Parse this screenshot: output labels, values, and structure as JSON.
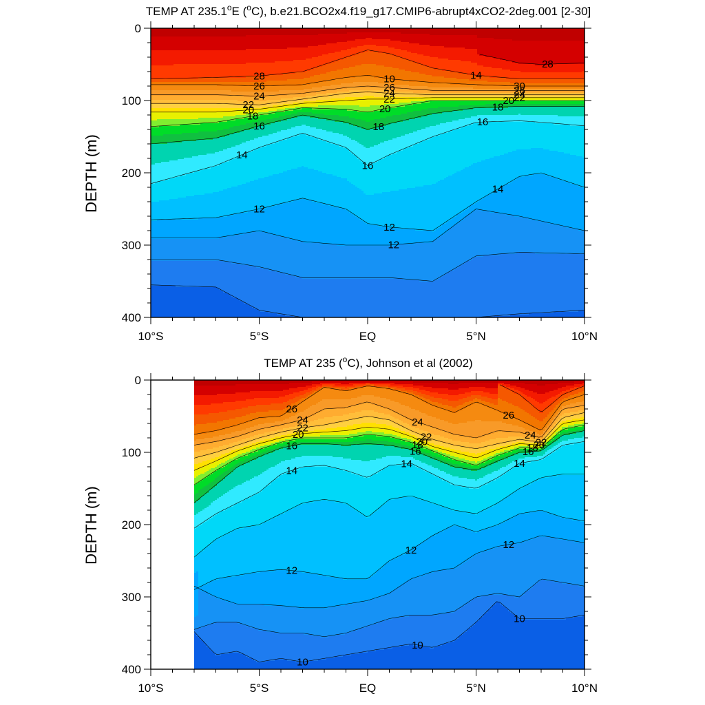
{
  "chart_data": [
    {
      "type": "contour",
      "title_main": "TEMP AT 235.1",
      "title_sup": "o",
      "title_rest": "E (",
      "title_sup2": "o",
      "title_end": "C), b.e21.BCO2x4.f19_g17.CMIP6-abrupt4xCO2-2deg.001 [2-30]",
      "ylabel": "DEPTH (m)",
      "x_ticks": [
        "10°S",
        "5°S",
        "EQ",
        "5°N",
        "10°N"
      ],
      "y_ticks": [
        "0",
        "100",
        "200",
        "300",
        "400"
      ],
      "xlim": [
        -10,
        10
      ],
      "ylim": [
        0,
        400
      ],
      "y_reversed": true,
      "data_xlim": [
        -10,
        10
      ],
      "levels": [
        10,
        12,
        14,
        16,
        18,
        20,
        22,
        24,
        26,
        28,
        30
      ],
      "isotherm_depths": {
        "x": [
          -10,
          -7,
          -5,
          -3,
          -1,
          0,
          1,
          3,
          5,
          7,
          8,
          10
        ],
        "t30": [
          null,
          null,
          null,
          null,
          null,
          null,
          null,
          null,
          35,
          48,
          50,
          48
        ],
        "t28": [
          70,
          68,
          66,
          60,
          40,
          30,
          35,
          55,
          65,
          70,
          70,
          70
        ],
        "t26": [
          78,
          78,
          80,
          78,
          68,
          65,
          70,
          75,
          78,
          80,
          80,
          80
        ],
        "t24": [
          92,
          92,
          94,
          90,
          82,
          80,
          82,
          86,
          86,
          86,
          86,
          86
        ],
        "t22": [
          104,
          104,
          106,
          98,
          90,
          88,
          90,
          92,
          92,
          92,
          92,
          92
        ],
        "t20": [
          116,
          116,
          112,
          104,
          100,
          98,
          98,
          96,
          96,
          96,
          96,
          96
        ],
        "t18": [
          136,
          130,
          120,
          110,
          112,
          116,
          110,
          100,
          100,
          100,
          100,
          100
        ],
        "t16": [
          160,
          152,
          135,
          120,
          130,
          140,
          132,
          118,
          110,
          108,
          108,
          108
        ],
        "t14": [
          215,
          190,
          165,
          145,
          165,
          190,
          175,
          150,
          130,
          128,
          130,
          135
        ],
        "t12": [
          265,
          262,
          250,
          235,
          250,
          270,
          275,
          280,
          240,
          205,
          200,
          220
        ]
      },
      "deep_isotherms": {
        "x": [
          -10,
          -7,
          -5,
          -3,
          -1,
          0,
          1,
          3,
          5,
          7,
          10
        ],
        "t11": [
          290,
          290,
          280,
          295,
          300,
          300,
          300,
          295,
          250,
          260,
          280
        ],
        "t10_5": [
          320,
          320,
          330,
          345,
          345,
          345,
          345,
          350,
          315,
          310,
          312
        ],
        "t10": [
          355,
          358,
          390,
          400,
          400,
          400,
          400,
          400,
          400,
          395,
          390
        ]
      },
      "contour_labels": [
        "28",
        "26",
        "24",
        "22",
        "20",
        "18",
        "16",
        "14",
        "12",
        "12",
        "12",
        "10",
        "26",
        "24",
        "22",
        "20",
        "18",
        "16",
        "14",
        "28",
        "30",
        "26",
        "24",
        "22",
        "20",
        "18",
        "16",
        "14",
        "12"
      ]
    },
    {
      "type": "contour",
      "title_main": "TEMP AT 235 (",
      "title_sup": "o",
      "title_end": "C), Johnson et al (2002)",
      "ylabel": "DEPTH (m)",
      "x_ticks": [
        "10°S",
        "5°S",
        "EQ",
        "5°N",
        "10°N"
      ],
      "y_ticks": [
        "0",
        "100",
        "200",
        "300",
        "400"
      ],
      "xlim": [
        -10,
        10
      ],
      "ylim": [
        0,
        400
      ],
      "y_reversed": true,
      "data_xlim": [
        -8,
        10
      ],
      "levels": [
        10,
        12,
        14,
        16,
        18,
        20,
        22,
        24,
        26,
        28
      ],
      "isotherm_depths": {
        "x": [
          -8,
          -7,
          -6,
          -5,
          -4,
          -3,
          -2,
          -1,
          0,
          1,
          2,
          3,
          4,
          5,
          6,
          7,
          8,
          9,
          10
        ],
        "t28": [
          null,
          null,
          null,
          null,
          null,
          null,
          null,
          null,
          null,
          null,
          null,
          null,
          null,
          null,
          5,
          20,
          45,
          20,
          8
        ],
        "t26": [
          75,
          70,
          62,
          52,
          50,
          30,
          10,
          15,
          8,
          12,
          20,
          35,
          45,
          30,
          42,
          55,
          70,
          30,
          20
        ],
        "t24": [
          90,
          85,
          78,
          68,
          62,
          55,
          40,
          38,
          30,
          40,
          55,
          65,
          75,
          80,
          70,
          72,
          80,
          40,
          35
        ],
        "t22": [
          108,
          100,
          90,
          80,
          72,
          66,
          62,
          56,
          50,
          55,
          70,
          82,
          90,
          95,
          88,
          82,
          86,
          52,
          45
        ],
        "t20": [
          125,
          112,
          98,
          88,
          80,
          74,
          72,
          70,
          65,
          68,
          78,
          92,
          100,
          108,
          96,
          88,
          90,
          60,
          55
        ],
        "t18": [
          145,
          125,
          108,
          96,
          86,
          80,
          80,
          80,
          75,
          78,
          86,
          98,
          110,
          118,
          104,
          94,
          94,
          68,
          62
        ],
        "t16": [
          170,
          145,
          120,
          106,
          94,
          88,
          88,
          90,
          88,
          90,
          96,
          108,
          120,
          125,
          112,
          100,
          98,
          76,
          70
        ],
        "t14": [
          205,
          185,
          170,
          155,
          130,
          120,
          118,
          125,
          135,
          118,
          115,
          130,
          145,
          150,
          135,
          115,
          110,
          90,
          85
        ],
        "t13": [
          245,
          220,
          205,
          200,
          185,
          170,
          165,
          170,
          190,
          165,
          160,
          170,
          180,
          185,
          170,
          150,
          135,
          130,
          130
        ],
        "t12": [
          290,
          275,
          270,
          265,
          262,
          265,
          270,
          275,
          275,
          250,
          235,
          215,
          200,
          210,
          200,
          185,
          180,
          190,
          195
        ]
      },
      "deep_isotherms": {
        "x": [
          -8,
          -7,
          -6,
          -5,
          -4,
          -3,
          -2,
          -1,
          0,
          1,
          2,
          3,
          4,
          5,
          6,
          7,
          8,
          9,
          10
        ],
        "t11": [
          285,
          300,
          310,
          310,
          312,
          315,
          315,
          310,
          305,
          295,
          275,
          265,
          260,
          240,
          230,
          225,
          215,
          220,
          225
        ],
        "t10_5": [
          345,
          335,
          335,
          345,
          350,
          350,
          355,
          350,
          340,
          330,
          325,
          325,
          320,
          300,
          295,
          300,
          275,
          280,
          285
        ],
        "t10": [
          348,
          380,
          375,
          390,
          385,
          390,
          385,
          380,
          375,
          370,
          365,
          370,
          360,
          335,
          305,
          330,
          330,
          330,
          325
        ]
      },
      "contour_labels": [
        "26",
        "24",
        "22",
        "20",
        "16",
        "14",
        "12",
        "12",
        "10",
        "24",
        "22",
        "20",
        "18",
        "16",
        "14",
        "12",
        "10",
        "26",
        "24",
        "22",
        "20",
        "18",
        "16",
        "14",
        "10"
      ]
    }
  ]
}
